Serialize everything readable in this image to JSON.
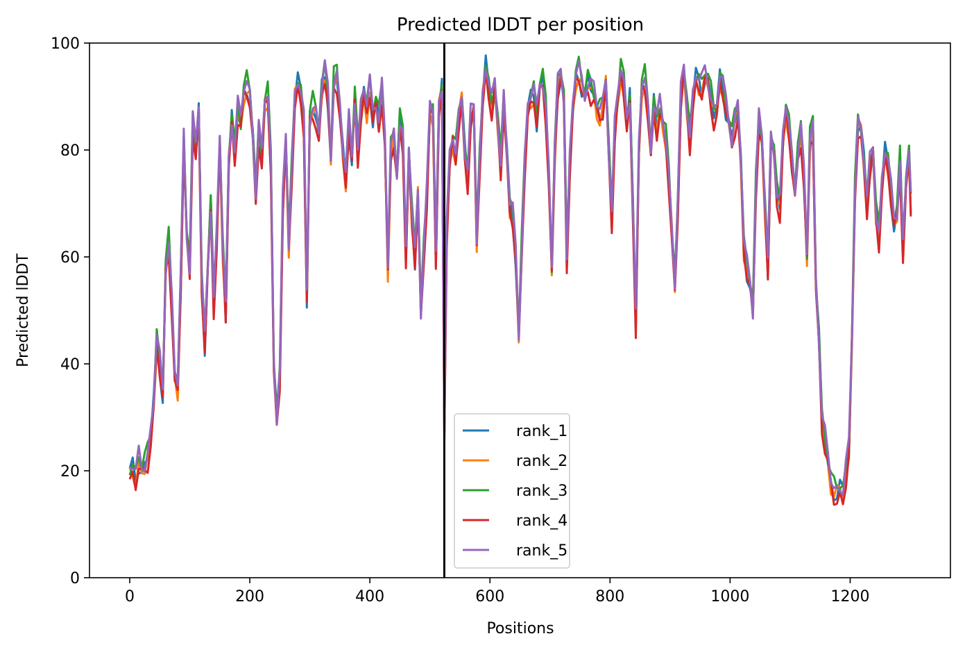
{
  "chart_data": {
    "type": "line",
    "title": "Predicted lDDT per position",
    "xlabel": "Positions",
    "ylabel": "Predicted lDDT",
    "xlim": [
      -67,
      1367
    ],
    "ylim": [
      0,
      100
    ],
    "x_ticks": [
      0,
      200,
      400,
      600,
      800,
      1000,
      1200
    ],
    "y_ticks": [
      0,
      20,
      40,
      60,
      80,
      100
    ],
    "grid": false,
    "legend_position": "lower-center-left",
    "vertical_line": {
      "x": 524,
      "color": "#000000"
    },
    "series": [
      {
        "name": "rank_1",
        "color": "#1f77b4",
        "offset": -0.4
      },
      {
        "name": "rank_2",
        "color": "#ff7f0e",
        "offset": -0.8
      },
      {
        "name": "rank_3",
        "color": "#2ca02c",
        "offset": 0.9
      },
      {
        "name": "rank_4",
        "color": "#d62728",
        "offset": -1.6
      },
      {
        "name": "rank_5",
        "color": "#9467bd",
        "offset": 0.6
      }
    ],
    "x": [
      0,
      5,
      10,
      15,
      20,
      25,
      30,
      35,
      40,
      45,
      50,
      55,
      60,
      65,
      70,
      75,
      80,
      85,
      90,
      95,
      100,
      105,
      110,
      115,
      120,
      125,
      130,
      135,
      140,
      145,
      150,
      155,
      160,
      165,
      170,
      175,
      180,
      185,
      190,
      195,
      200,
      205,
      210,
      215,
      220,
      225,
      230,
      235,
      240,
      245,
      250,
      255,
      260,
      265,
      270,
      275,
      280,
      285,
      290,
      295,
      300,
      305,
      310,
      315,
      320,
      325,
      330,
      335,
      340,
      345,
      350,
      355,
      360,
      365,
      370,
      375,
      380,
      385,
      390,
      395,
      400,
      405,
      410,
      415,
      420,
      425,
      430,
      435,
      440,
      445,
      450,
      455,
      460,
      465,
      470,
      475,
      480,
      485,
      490,
      495,
      500,
      505,
      510,
      515,
      520,
      524,
      528,
      533,
      538,
      543,
      548,
      553,
      558,
      563,
      568,
      573,
      578,
      583,
      588,
      593,
      598,
      603,
      608,
      613,
      618,
      623,
      628,
      633,
      638,
      643,
      648,
      653,
      658,
      663,
      668,
      673,
      678,
      683,
      688,
      693,
      698,
      703,
      708,
      713,
      718,
      723,
      728,
      733,
      738,
      743,
      748,
      753,
      758,
      763,
      768,
      773,
      778,
      783,
      788,
      793,
      798,
      803,
      808,
      813,
      818,
      823,
      828,
      833,
      838,
      843,
      848,
      853,
      858,
      863,
      868,
      873,
      878,
      883,
      888,
      893,
      898,
      903,
      908,
      913,
      918,
      923,
      928,
      933,
      938,
      943,
      948,
      953,
      958,
      963,
      968,
      973,
      978,
      983,
      988,
      993,
      998,
      1003,
      1008,
      1013,
      1018,
      1023,
      1028,
      1033,
      1038,
      1043,
      1048,
      1053,
      1058,
      1063,
      1068,
      1073,
      1078,
      1083,
      1088,
      1093,
      1098,
      1103,
      1108,
      1113,
      1118,
      1123,
      1128,
      1133,
      1138,
      1143,
      1148,
      1153,
      1158,
      1163,
      1168,
      1173,
      1178,
      1183,
      1188,
      1193,
      1198,
      1203,
      1208,
      1213,
      1218,
      1223,
      1228,
      1233,
      1238,
      1243,
      1248,
      1253,
      1258,
      1263,
      1268,
      1273,
      1278,
      1283,
      1288,
      1293,
      1298,
      1301
    ],
    "y": [
      20,
      21,
      19,
      22,
      20,
      21,
      23,
      27,
      33,
      45,
      40,
      34,
      58,
      63,
      52,
      38,
      36,
      55,
      82,
      64,
      58,
      86,
      80,
      88,
      55,
      44,
      58,
      70,
      52,
      64,
      82,
      62,
      50,
      78,
      86,
      80,
      88,
      85,
      91,
      92,
      90,
      83,
      72,
      84,
      78,
      89,
      90,
      78,
      40,
      30,
      38,
      70,
      82,
      62,
      76,
      90,
      93,
      91,
      85,
      52,
      86,
      88,
      87,
      83,
      92,
      95,
      90,
      78,
      93,
      94,
      88,
      80,
      75,
      85,
      78,
      90,
      80,
      88,
      91,
      88,
      92,
      86,
      89,
      86,
      92,
      82,
      58,
      80,
      82,
      75,
      86,
      83,
      60,
      80,
      68,
      60,
      72,
      50,
      62,
      72,
      88,
      87,
      60,
      88,
      92,
      28,
      65,
      78,
      82,
      79,
      86,
      90,
      80,
      75,
      86,
      88,
      63,
      78,
      90,
      96,
      92,
      88,
      92,
      85,
      77,
      90,
      80,
      70,
      68,
      60,
      45,
      62,
      78,
      88,
      90,
      91,
      86,
      92,
      93,
      88,
      76,
      58,
      80,
      92,
      94,
      90,
      60,
      78,
      88,
      94,
      95,
      92,
      90,
      93,
      92,
      91,
      88,
      87,
      88,
      93,
      80,
      68,
      84,
      90,
      95,
      92,
      85,
      90,
      70,
      48,
      80,
      92,
      93,
      88,
      80,
      89,
      85,
      88,
      85,
      82,
      75,
      65,
      55,
      70,
      90,
      95,
      88,
      82,
      90,
      94,
      93,
      92,
      94,
      93,
      90,
      87,
      88,
      94,
      92,
      88,
      85,
      82,
      86,
      88,
      78,
      62,
      58,
      55,
      50,
      74,
      86,
      82,
      70,
      58,
      82,
      80,
      72,
      70,
      82,
      88,
      84,
      78,
      72,
      80,
      84,
      75,
      60,
      82,
      84,
      55,
      45,
      30,
      26,
      22,
      18,
      16,
      16,
      17,
      16,
      20,
      24,
      45,
      72,
      85,
      84,
      78,
      70,
      77,
      80,
      68,
      64,
      74,
      80,
      78,
      72,
      66,
      68,
      78,
      62,
      74,
      80,
      70
    ]
  }
}
